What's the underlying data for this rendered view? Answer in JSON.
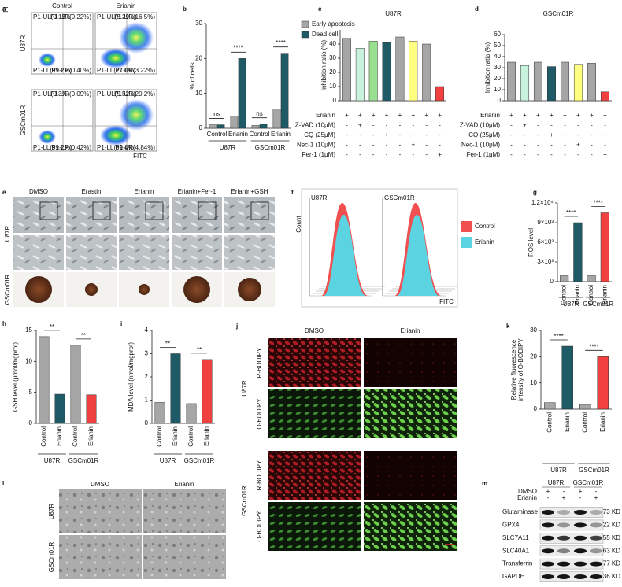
{
  "panel_labels": [
    "a",
    "b",
    "c",
    "d",
    "e",
    "f",
    "g",
    "h",
    "i",
    "j",
    "k",
    "l",
    "m"
  ],
  "flow_cytometry": {
    "y_label": "PI",
    "x_label": "FITC",
    "columns": [
      "Control",
      "Erianin"
    ],
    "rows": [
      "U87R",
      "GSCm01R"
    ],
    "gates": [
      [
        [
          "P1-UL(0.15%)",
          "P1-UR(0.22%)",
          "P1-LL(99.2%)",
          "P1-LR(0.40%)"
        ],
        [
          "P1-UL(3.29%)",
          "P1-UR(16.5%)",
          "P1-LL(77.0%)",
          "P1-LR(3.22%)"
        ]
      ],
      [
        [
          "P1-UL(0.3%)",
          "P1-UR(0.09%)",
          "P1-LL(99.2%)",
          "P1-LR(0.42%)"
        ],
        [
          "P1-UL(5.52%)",
          "P1-UR(20.2%)",
          "P1-LL(69.4%)",
          "P1-LR(4.84%)"
        ]
      ]
    ]
  },
  "chart_data": [
    {
      "type": "bar",
      "ylabel": "% of cells",
      "categories": [
        "Control",
        "Erianin",
        "Control",
        "Erianin"
      ],
      "groups": [
        "U87R",
        "GSCm01R"
      ],
      "series": [
        {
          "name": "Early apoptosis",
          "color": "#a6a6a6",
          "values": [
            1,
            3.5,
            0.8,
            5.5
          ]
        },
        {
          "name": "Dead cell",
          "color": "#1e5b66",
          "values": [
            1,
            20,
            1.2,
            21.5
          ]
        }
      ],
      "ylim": [
        0,
        30
      ],
      "yticks": [
        0,
        10,
        20,
        30
      ],
      "significance": [
        "ns",
        "****",
        "ns",
        "****"
      ]
    },
    {
      "type": "bar",
      "title": "U87R",
      "ylabel": "Inhibition ratio (%)",
      "values": [
        44,
        37,
        42,
        41,
        45,
        42,
        40,
        10
      ],
      "colors": [
        "#a6a6a6",
        "#c8f2dc",
        "#98e08f",
        "#1e5b66",
        "#a6a6a6",
        "#ffff80",
        "#a6a6a6",
        "#f04040"
      ],
      "ylim": [
        0,
        50
      ],
      "yticks": [
        0,
        10,
        20,
        30,
        40
      ],
      "treatments": {
        "rows": [
          "Erianin",
          "Z-VAD (10μM)",
          "CQ (25μM)",
          "Nec-1 (10μM)",
          "Fer-1 (1μM)"
        ],
        "signs": [
          [
            "+",
            "+",
            "+",
            "+",
            "+",
            "+",
            "+",
            "+"
          ],
          [
            "-",
            "+",
            "-",
            "-",
            "-",
            "-",
            "-",
            "-"
          ],
          [
            "-",
            "-",
            "-",
            "+",
            "-",
            "-",
            "-",
            "-"
          ],
          [
            "-",
            "-",
            "-",
            "-",
            "-",
            "+",
            "-",
            "-"
          ],
          [
            "-",
            "-",
            "-",
            "-",
            "-",
            "-",
            "-",
            "+"
          ]
        ]
      }
    },
    {
      "type": "bar",
      "title": "GSCm01R",
      "ylabel": "Inhibition ratio (%)",
      "values": [
        35,
        32,
        35,
        31,
        35,
        33,
        34,
        8
      ],
      "colors": [
        "#a6a6a6",
        "#c8f2dc",
        "#a6a6a6",
        "#1e5b66",
        "#a6a6a6",
        "#ffff80",
        "#a6a6a6",
        "#f04040"
      ],
      "ylim": [
        0,
        60
      ],
      "yticks": [
        0,
        10,
        20,
        30,
        40,
        50,
        60
      ],
      "treatments": {
        "rows": [
          "Erianin",
          "Z-VAD (10μM)",
          "CQ (25μM)",
          "Nec-1 (10μM)",
          "Fer-1 (1μM)"
        ],
        "signs": [
          [
            "+",
            "+",
            "+",
            "+",
            "+",
            "+",
            "+",
            "+"
          ],
          [
            "-",
            "+",
            "-",
            "-",
            "-",
            "-",
            "-",
            "-"
          ],
          [
            "-",
            "-",
            "-",
            "+",
            "-",
            "-",
            "-",
            "-"
          ],
          [
            "-",
            "-",
            "-",
            "-",
            "-",
            "+",
            "-",
            "-"
          ],
          [
            "-",
            "-",
            "-",
            "-",
            "-",
            "-",
            "-",
            "+"
          ]
        ]
      }
    },
    {
      "type": "bar",
      "ylabel": "ROS level",
      "categories": [
        "Control",
        "Erianin",
        "Control",
        "Erianin"
      ],
      "groups": [
        "U87R",
        "GSCm01R"
      ],
      "values": [
        900,
        9000,
        900,
        10500
      ],
      "colors": [
        "#a6a6a6",
        "#1e5b66",
        "#a6a6a6",
        "#f04040"
      ],
      "ylim": [
        0,
        12000
      ],
      "yticks": [
        0,
        {
          "value": 3000,
          "label": "3×10³"
        },
        {
          "value": 6000,
          "label": "6×10³"
        },
        {
          "value": 9000,
          "label": "9×10³"
        },
        {
          "value": 12000,
          "label": "1.2×10⁴"
        }
      ],
      "significance": [
        "****",
        "****"
      ]
    },
    {
      "type": "bar",
      "ylabel": "GSH level (μmol/mgprot)",
      "categories": [
        "Control",
        "Erianin",
        "Control",
        "Erianin"
      ],
      "groups": [
        "U87R",
        "GSCm01R"
      ],
      "values": [
        14,
        4.7,
        12.6,
        4.6
      ],
      "colors": [
        "#a6a6a6",
        "#1e5b66",
        "#a6a6a6",
        "#f04040"
      ],
      "ylim": [
        0,
        15
      ],
      "yticks": [
        0,
        5,
        10,
        15
      ],
      "significance": [
        "**",
        "**"
      ]
    },
    {
      "type": "bar",
      "ylabel": "MDA level (nmol/mgprot)",
      "categories": [
        "Control",
        "Erianin",
        "Control",
        "Erianin"
      ],
      "groups": [
        "U87R",
        "GSCm01R"
      ],
      "values": [
        0.9,
        3,
        0.85,
        2.75
      ],
      "colors": [
        "#a6a6a6",
        "#1e5b66",
        "#a6a6a6",
        "#f04040"
      ],
      "ylim": [
        0,
        4
      ],
      "yticks": [
        0,
        1,
        2,
        3,
        4
      ],
      "significance": [
        "**",
        "**"
      ]
    },
    {
      "type": "bar",
      "ylabel": [
        "Relative fluorescence",
        "intensity of O-BODIPY"
      ],
      "categories": [
        "Control",
        "Erianin",
        "Control",
        "Erianin"
      ],
      "groups": [
        "U87R",
        "GSCm01R"
      ],
      "values": [
        2.5,
        24,
        1.8,
        20
      ],
      "colors": [
        "#a6a6a6",
        "#1e5b66",
        "#a6a6a6",
        "#f04040"
      ],
      "ylim": [
        0,
        30
      ],
      "yticks": [
        0,
        10,
        20,
        30
      ],
      "significance": [
        "****",
        "****"
      ]
    }
  ],
  "cell_images": {
    "columns": [
      "DMSO",
      "Erastin",
      "Erianin",
      "Erianin+Fer-1",
      "Erianin+GSH"
    ],
    "rows": [
      "U87R",
      "GSCm01R"
    ]
  },
  "flow_histogram": {
    "panels": [
      "U87R",
      "GSCm01R"
    ],
    "y_label": "Count",
    "x_label": "FITC",
    "legend": [
      {
        "name": "Control",
        "color": "#f05050"
      },
      {
        "name": "Erianin",
        "color": "#5bd3e0"
      }
    ]
  },
  "bodipy_images": {
    "columns": [
      "DMSO",
      "Erianin"
    ],
    "cell_lines": [
      "U87R",
      "GSCm01R"
    ],
    "stains": [
      "R-BODIPY",
      "O-BODIPY"
    ]
  },
  "tem_images": {
    "columns": [
      "DMSO",
      "Erianin"
    ],
    "rows": [
      "U87R",
      "GSCm01R"
    ]
  },
  "western_blot": {
    "cell_lines": [
      "U87R",
      "GSCm01R"
    ],
    "treatments": [
      {
        "name": "DMSO",
        "signs": [
          "+",
          "-",
          "+",
          "-"
        ]
      },
      {
        "name": "Erianin",
        "signs": [
          "-",
          "+",
          "-",
          "+"
        ]
      }
    ],
    "proteins": [
      {
        "name": "Glutaminase",
        "size": "73 KD"
      },
      {
        "name": "GPX4",
        "size": "22 KD"
      },
      {
        "name": "SLC7A11",
        "size": "55 KD"
      },
      {
        "name": "SLC40A1",
        "size": "63 KD"
      },
      {
        "name": "Transferrin",
        "size": "77 KD"
      },
      {
        "name": "GAPDH",
        "size": "36 KD"
      }
    ]
  }
}
